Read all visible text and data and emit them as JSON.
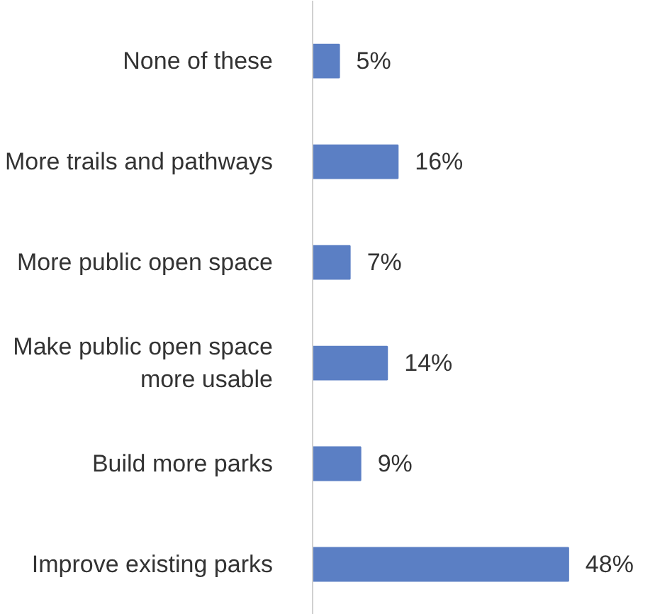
{
  "chart_data": {
    "type": "bar",
    "orientation": "horizontal",
    "categories": [
      "None of these",
      "More trails and pathways",
      "More public open space",
      "Make public open space\nmore usable",
      "Build more parks",
      "Improve existing parks"
    ],
    "values": [
      5,
      16,
      7,
      14,
      9,
      48
    ],
    "value_labels": [
      "5%",
      "16%",
      "7%",
      "14%",
      "9%",
      "48%"
    ],
    "color": "#5b7fc4",
    "grid": false,
    "tick_labels": "y"
  }
}
